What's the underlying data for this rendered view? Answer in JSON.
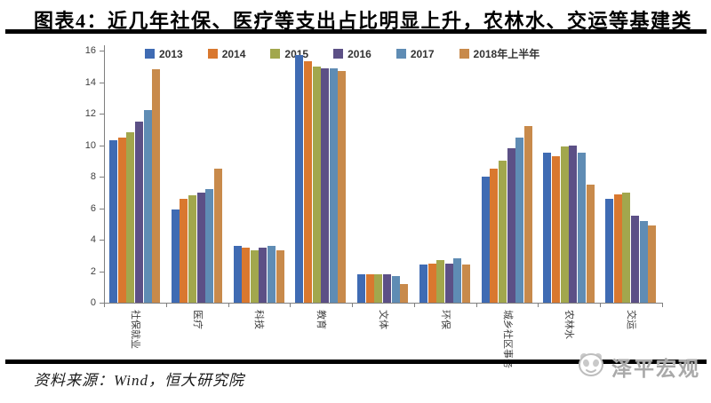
{
  "page": {
    "title": "图表4：近几年社保、医疗等支出占比明显上升，农林水、交运等基建类",
    "source": "资料来源：Wind，恒大研究院",
    "logo_text": "泽平宏观"
  },
  "chart_data": {
    "type": "bar",
    "title": "",
    "categories": [
      "社保就业",
      "医疗",
      "科技",
      "教育",
      "文体",
      "环保",
      "城乡社区事务",
      "农林水",
      "交运"
    ],
    "series": [
      {
        "name": "2013",
        "color": "#3f6bb3",
        "values": [
          10.3,
          5.9,
          3.6,
          15.7,
          1.8,
          2.4,
          8.0,
          9.5,
          6.6
        ]
      },
      {
        "name": "2014",
        "color": "#d9782f",
        "values": [
          10.5,
          6.6,
          3.5,
          15.3,
          1.8,
          2.5,
          8.5,
          9.3,
          6.9
        ]
      },
      {
        "name": "2015",
        "color": "#a2a74d",
        "values": [
          10.8,
          6.8,
          3.3,
          15.0,
          1.8,
          2.7,
          9.0,
          9.9,
          7.0
        ]
      },
      {
        "name": "2016",
        "color": "#5c5086",
        "values": [
          11.5,
          7.0,
          3.5,
          14.9,
          1.8,
          2.5,
          9.8,
          10.0,
          5.5
        ]
      },
      {
        "name": "2017",
        "color": "#5f8cb4",
        "values": [
          12.2,
          7.2,
          3.6,
          14.9,
          1.7,
          2.8,
          10.5,
          9.5,
          5.2
        ]
      },
      {
        "name": "2018年上半年",
        "color": "#c88a4b",
        "values": [
          14.8,
          8.5,
          3.3,
          14.7,
          1.2,
          2.4,
          11.2,
          7.5,
          4.9
        ]
      }
    ],
    "ylim": [
      0,
      16
    ],
    "ytick_step": 2,
    "xlabel": "",
    "ylabel": "",
    "grid": false,
    "legend_position": "top"
  }
}
